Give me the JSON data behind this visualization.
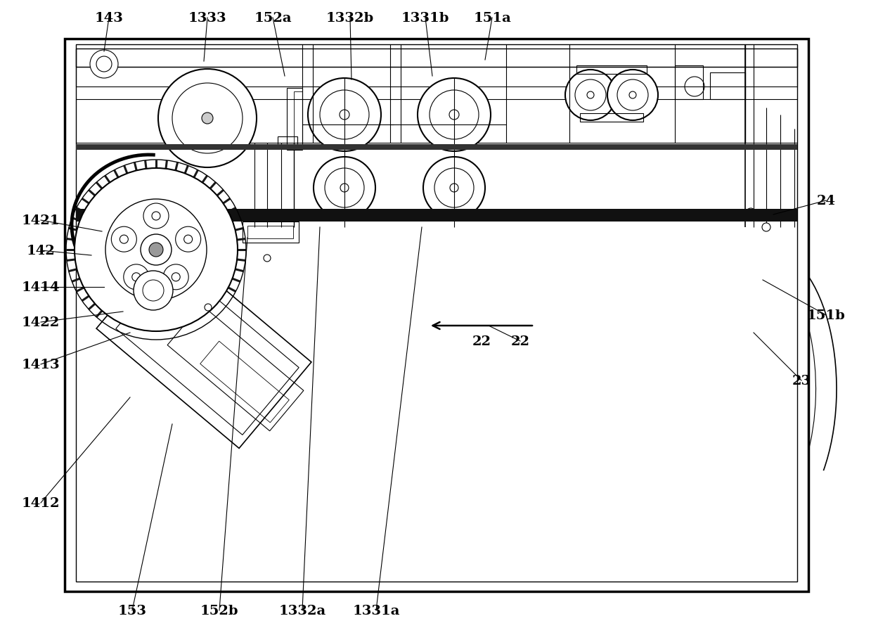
{
  "bg_color": "#ffffff",
  "lc": "#000000",
  "fig_width": 12.39,
  "fig_height": 9.04,
  "top_labels": [
    [
      "143",
      155,
      878,
      148,
      830
    ],
    [
      "1333",
      295,
      878,
      290,
      816
    ],
    [
      "152a",
      388,
      878,
      405,
      795
    ],
    [
      "1332b",
      498,
      878,
      500,
      790
    ],
    [
      "1331b",
      605,
      878,
      615,
      795
    ],
    [
      "151a",
      700,
      878,
      690,
      818
    ]
  ],
  "left_labels": [
    [
      "1421",
      58,
      590,
      145,
      574
    ],
    [
      "142",
      58,
      547,
      130,
      540
    ],
    [
      "1414",
      58,
      495,
      148,
      495
    ],
    [
      "1422",
      58,
      445,
      175,
      460
    ],
    [
      "1413",
      58,
      385,
      185,
      430
    ],
    [
      "1412",
      58,
      188,
      185,
      338
    ]
  ],
  "right_labels": [
    [
      "24",
      1175,
      618,
      1100,
      598
    ],
    [
      "151b",
      1175,
      455,
      1085,
      505
    ],
    [
      "23",
      1140,
      362,
      1072,
      430
    ],
    [
      "22",
      740,
      418,
      695,
      440
    ]
  ],
  "bottom_labels": [
    [
      "153",
      188,
      35,
      245,
      300
    ],
    [
      "152b",
      312,
      35,
      352,
      565
    ],
    [
      "1332a",
      430,
      35,
      455,
      580
    ],
    [
      "1331a",
      535,
      35,
      600,
      580
    ]
  ]
}
